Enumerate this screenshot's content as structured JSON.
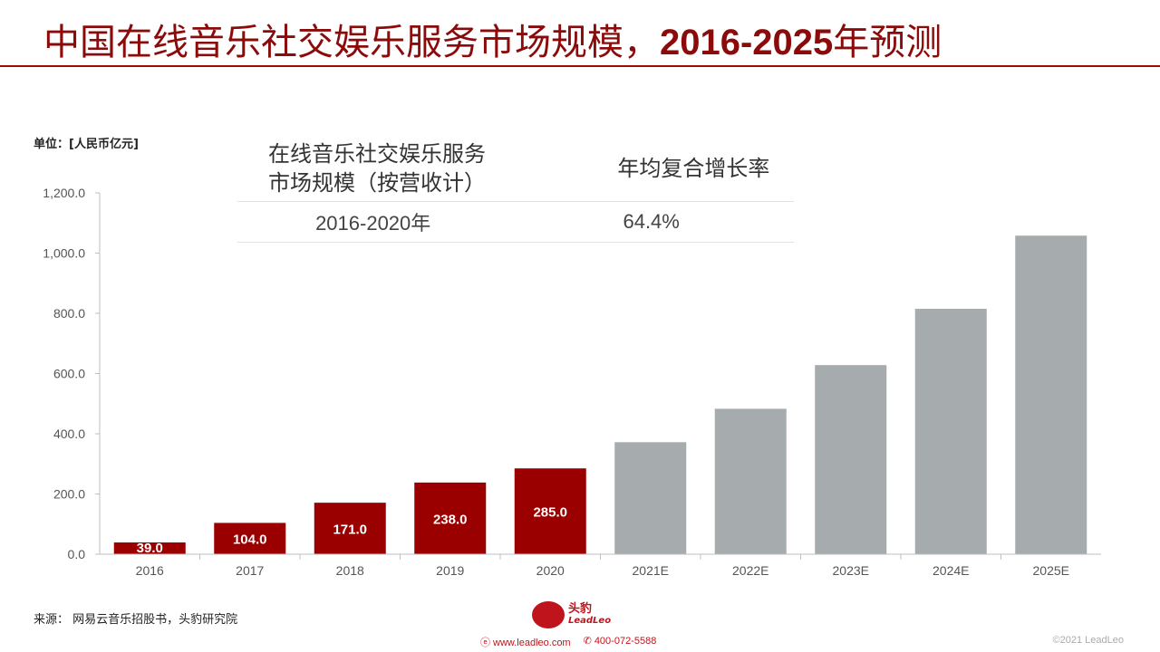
{
  "header": {
    "title_prefix": "中国在线音乐社交娱乐服务市场规模，",
    "title_bold": "2016-2025",
    "title_suffix": "年预测"
  },
  "unit_label": "单位：[人民币亿元]",
  "cagr_table": {
    "col1_header_line1": "在线音乐社交娱乐服务",
    "col1_header_line2": "市场规模（按营收计）",
    "col2_header": "年均复合增长率",
    "period": "2016-2020年",
    "rate": "64.4%"
  },
  "chart_data": {
    "type": "bar",
    "categories": [
      "2016",
      "2017",
      "2018",
      "2019",
      "2020",
      "2021E",
      "2022E",
      "2023E",
      "2024E",
      "2025E"
    ],
    "values": [
      39.0,
      104.0,
      171.0,
      238.0,
      285.0,
      372.0,
      483.0,
      628.0,
      815.0,
      1058.0
    ],
    "value_labels": [
      "39.0",
      "104.0",
      "171.0",
      "238.0",
      "285.0",
      "",
      "",
      "",
      "",
      ""
    ],
    "ylim": [
      0,
      1200
    ],
    "yticks": [
      0,
      200,
      400,
      600,
      800,
      1000,
      1200
    ],
    "ytick_labels": [
      "0.0",
      "200.0",
      "400.0",
      "600.0",
      "800.0",
      "1,000.0",
      "1,200.0"
    ],
    "actual_color": "#9b0000",
    "forecast_color": "#a6abad",
    "grid": false
  },
  "footer": {
    "source": "来源：  网易云音乐招股书，头豹研究院",
    "brand_cn": "头豹",
    "brand_en": "LeadLeo",
    "website": "www.leadleo.com",
    "phone": "400-072-5588",
    "copyright": "©2021 LeadLeo"
  }
}
